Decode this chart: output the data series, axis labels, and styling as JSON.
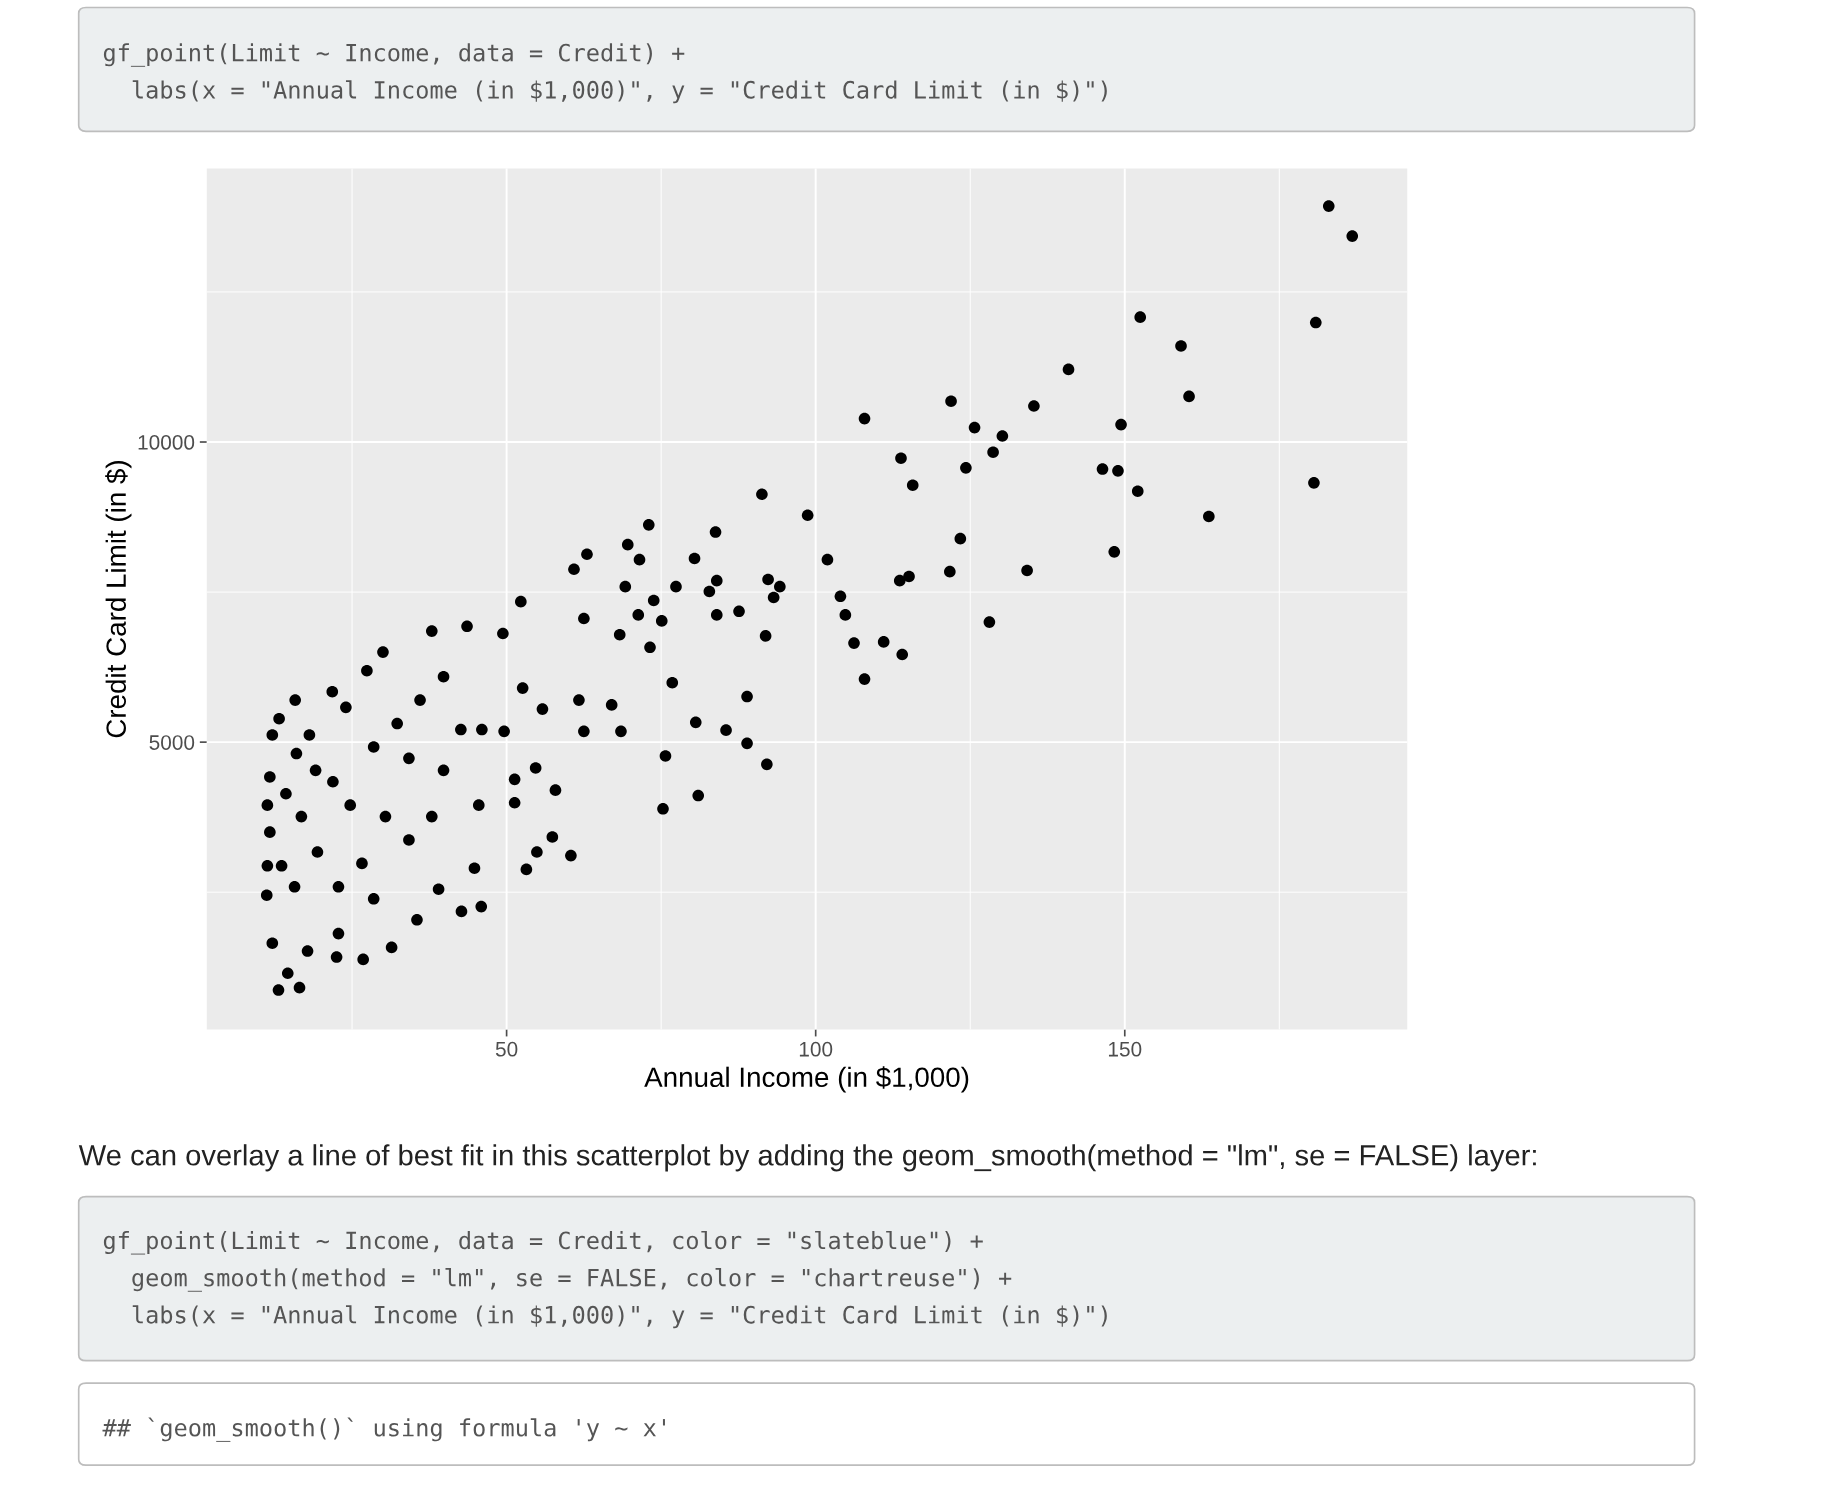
{
  "chart_data": {
    "type": "scatter",
    "xlabel": "Annual Income (in $1,000)",
    "ylabel": "Credit Card Limit (in $)",
    "xlim": [
      1.5,
      195.7
    ],
    "ylim": [
      213,
      14555
    ],
    "xticks": [
      {
        "value": 25,
        "label": null
      },
      50,
      {
        "value": 75,
        "label": null
      },
      100,
      {
        "value": 125,
        "label": null
      },
      150,
      {
        "value": 175,
        "label": null
      }
    ],
    "yticks": [
      {
        "value": 2500,
        "label": null
      },
      5000,
      {
        "value": 7500,
        "label": null
      },
      10000,
      {
        "value": 12500,
        "label": null
      }
    ],
    "grid": true,
    "marker": "circle",
    "series": [
      {
        "color": "#000000",
        "x": [
          183.0,
          186.8,
          152.5,
          180.9,
          159.1,
          140.9,
          160.4,
          121.9,
          107.9,
          135.3,
          125.7,
          149.4,
          130.2,
          128.7,
          113.8,
          146.4,
          148.9,
          124.3,
          115.7,
          180.6,
          152.1,
          91.3,
          98.7,
          163.6,
          73.0,
          83.8,
          123.4,
          69.6,
          148.3,
          63.0,
          101.9,
          80.4,
          71.5,
          60.9,
          134.2,
          121.7,
          115.1,
          113.6,
          84.0,
          92.3,
          94.2,
          77.4,
          82.8,
          69.2,
          104.0,
          93.2,
          52.3,
          73.8,
          104.8,
          71.3,
          84.0,
          87.6,
          62.5,
          128.1,
          75.1,
          68.3,
          91.9,
          111.0,
          106.2,
          73.2,
          114.0,
          30.0,
          37.9,
          43.6,
          49.4,
          107.9,
          76.8,
          27.4,
          88.9,
          61.7,
          67.0,
          80.6,
          85.5,
          88.9,
          92.1,
          75.7,
          81.0,
          75.3,
          60.4,
          57.4,
          53.2,
          54.9,
          51.3,
          57.9,
          62.5,
          68.5,
          46.0,
          49.6,
          55.8,
          52.6,
          54.7,
          51.3,
          45.5,
          45.9,
          42.7,
          44.8,
          39.0,
          35.5,
          31.4,
          26.8,
          22.5,
          17.8,
          13.1,
          16.5,
          14.6,
          12.1,
          11.2,
          11.3,
          11.7,
          11.3,
          11.7,
          12.1,
          13.2,
          15.8,
          21.8,
          24.0,
          16.0,
          19.1,
          16.8,
          19.4,
          15.7,
          22.8,
          24.7,
          28.5,
          32.3,
          36.0,
          39.8,
          34.2,
          30.4,
          26.6,
          22.8,
          34.2,
          39.8,
          42.6,
          37.9,
          28.5,
          18.1,
          21.9,
          13.6,
          14.3
        ],
        "values": [
          13930,
          13430,
          12080,
          11990,
          11600,
          11210,
          10760,
          10680,
          10390,
          10600,
          10240,
          10290,
          10100,
          9830,
          9730,
          9550,
          9520,
          9570,
          9280,
          9320,
          9180,
          9130,
          8780,
          8760,
          8620,
          8500,
          8390,
          8290,
          8170,
          8130,
          8040,
          8060,
          8040,
          7880,
          7860,
          7840,
          7760,
          7690,
          7690,
          7710,
          7590,
          7590,
          7510,
          7590,
          7430,
          7410,
          7340,
          7360,
          7120,
          7120,
          7120,
          7180,
          7060,
          7000,
          7020,
          6790,
          6770,
          6670,
          6650,
          6580,
          6460,
          6500,
          6850,
          6930,
          6810,
          6050,
          5990,
          6190,
          5760,
          5700,
          5620,
          5330,
          5200,
          4980,
          4630,
          4770,
          4110,
          3890,
          3110,
          3420,
          2880,
          3170,
          3990,
          4200,
          5180,
          5180,
          5210,
          5180,
          5550,
          5900,
          4570,
          4380,
          3950,
          2260,
          2180,
          2900,
          2550,
          2040,
          1580,
          1380,
          1420,
          1520,
          870,
          910,
          1150,
          1650,
          2450,
          2940,
          3500,
          3950,
          4420,
          5120,
          5390,
          5700,
          5840,
          5580,
          4810,
          4530,
          3760,
          3170,
          2590,
          2590,
          3950,
          4920,
          5310,
          5700,
          6090,
          4730,
          3760,
          2980,
          1810,
          3370,
          4530,
          5210,
          3760,
          2390,
          5120,
          4340,
          2940,
          4140
        ]
      }
    ],
    "annotations": [
      "gf_point(Limit ~ Income, data = Credit) +\n  labs(x = \"Annual Income (in $1,000)\", y = \"Credit Card Limit (in $)\")",
      "We can overlay a line of best fit in this scatterplot by adding the geom_smooth(method = \"lm\", se = FALSE) layer:",
      "gf_point(Limit ~ Income, data = Credit, color = \"slateblue\") +\n  geom_smooth(method = \"lm\", se = FALSE, color = \"chartreuse\") +\n  labs(x = \"Annual Income (in $1,000)\", y = \"Credit Card Limit (in $)\")",
      "## `geom_smooth()` using formula 'y ~ x'"
    ]
  }
}
